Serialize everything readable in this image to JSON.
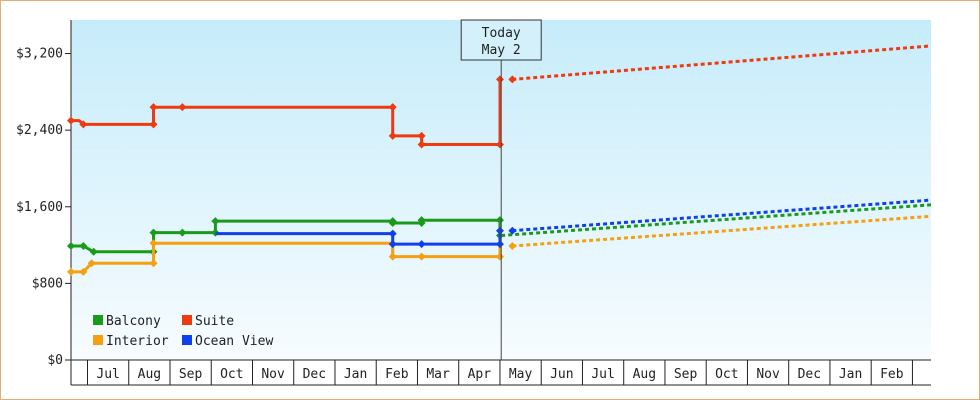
{
  "chart_data": {
    "type": "line",
    "title": "",
    "xlabel": "",
    "ylabel": "",
    "ylim": [
      0,
      3550
    ],
    "yticks": [
      0,
      800,
      1600,
      2400,
      3200
    ],
    "ytick_labels": [
      "$0",
      "$800",
      "$1,600",
      "$2,400",
      "$3,200"
    ],
    "month_labels": [
      "Jul",
      "Aug",
      "Sep",
      "Oct",
      "Nov",
      "Dec",
      "Jan",
      "Feb",
      "Mar",
      "Apr",
      "May",
      "Jun",
      "Jul",
      "Aug",
      "Sep",
      "Oct",
      "Nov",
      "Dec",
      "Jan",
      "Feb"
    ],
    "month_positions": [
      0.5,
      1.5,
      2.5,
      3.5,
      4.5,
      5.5,
      6.5,
      7.5,
      8.5,
      9.5,
      10.5,
      11.5,
      12.5,
      13.5,
      14.5,
      15.5,
      16.5,
      17.5,
      18.5,
      19.5
    ],
    "xlim": [
      -0.4,
      20.45
    ],
    "today": {
      "x": 10.03,
      "line1": "Today",
      "line2": "May 2"
    },
    "legend_position": "bottom-left",
    "series": [
      {
        "name": "Balcony",
        "color": "#1a9a1a",
        "history": [
          [
            -0.4,
            1190
          ],
          [
            -0.1,
            1190
          ],
          [
            0.15,
            1130
          ],
          [
            1.6,
            1130
          ],
          [
            1.6,
            1330
          ],
          [
            2.3,
            1330
          ],
          [
            2.3,
            1330
          ],
          [
            3.1,
            1330
          ],
          [
            3.1,
            1450
          ],
          [
            7.4,
            1450
          ],
          [
            7.4,
            1430
          ],
          [
            8.1,
            1430
          ],
          [
            8.1,
            1460
          ],
          [
            10.0,
            1460
          ],
          [
            10.0,
            1300
          ],
          [
            10.03,
            1300
          ]
        ],
        "markers": [
          [
            -0.4,
            1190
          ],
          [
            -0.1,
            1190
          ],
          [
            0.15,
            1130
          ],
          [
            1.6,
            1130
          ],
          [
            1.6,
            1330
          ],
          [
            2.3,
            1330
          ],
          [
            3.1,
            1330
          ],
          [
            3.1,
            1450
          ],
          [
            7.4,
            1450
          ],
          [
            7.4,
            1430
          ],
          [
            8.1,
            1430
          ],
          [
            8.1,
            1460
          ],
          [
            10.0,
            1460
          ],
          [
            10.0,
            1300
          ]
        ],
        "forecast": [
          [
            10.03,
            1300
          ],
          [
            20.45,
            1620
          ]
        ]
      },
      {
        "name": "Suite",
        "color": "#ee3a10",
        "history": [
          [
            -0.4,
            2500
          ],
          [
            -0.2,
            2500
          ],
          [
            -0.1,
            2460
          ],
          [
            1.6,
            2460
          ],
          [
            1.6,
            2640
          ],
          [
            2.3,
            2640
          ],
          [
            7.4,
            2640
          ],
          [
            7.4,
            2340
          ],
          [
            8.1,
            2340
          ],
          [
            8.1,
            2250
          ],
          [
            10.0,
            2250
          ],
          [
            10.0,
            2930
          ],
          [
            10.03,
            2930
          ]
        ],
        "markers": [
          [
            -0.4,
            2500
          ],
          [
            -0.1,
            2460
          ],
          [
            1.6,
            2460
          ],
          [
            1.6,
            2640
          ],
          [
            2.3,
            2640
          ],
          [
            7.4,
            2640
          ],
          [
            7.4,
            2340
          ],
          [
            8.1,
            2340
          ],
          [
            8.1,
            2250
          ],
          [
            10.0,
            2250
          ],
          [
            10.0,
            2930
          ],
          [
            10.3,
            2930
          ]
        ],
        "forecast": [
          [
            10.3,
            2930
          ],
          [
            20.45,
            3280
          ]
        ]
      },
      {
        "name": "Interior",
        "color": "#f4a010",
        "history": [
          [
            -0.4,
            920
          ],
          [
            -0.1,
            920
          ],
          [
            0.1,
            1010
          ],
          [
            1.6,
            1010
          ],
          [
            1.6,
            1220
          ],
          [
            7.4,
            1220
          ],
          [
            7.4,
            1080
          ],
          [
            8.1,
            1080
          ],
          [
            10.0,
            1080
          ],
          [
            10.0,
            1190
          ],
          [
            10.03,
            1190
          ]
        ],
        "markers": [
          [
            -0.4,
            920
          ],
          [
            -0.1,
            920
          ],
          [
            0.1,
            1010
          ],
          [
            1.6,
            1010
          ],
          [
            1.6,
            1220
          ],
          [
            7.4,
            1080
          ],
          [
            8.1,
            1080
          ],
          [
            10.0,
            1080
          ],
          [
            10.3,
            1190
          ]
        ],
        "forecast": [
          [
            10.3,
            1190
          ],
          [
            20.45,
            1500
          ]
        ]
      },
      {
        "name": "Ocean View",
        "color": "#1040ee",
        "history": [
          [
            3.1,
            1320
          ],
          [
            7.4,
            1320
          ],
          [
            7.4,
            1210
          ],
          [
            8.1,
            1210
          ],
          [
            10.0,
            1210
          ],
          [
            10.0,
            1350
          ],
          [
            10.03,
            1350
          ]
        ],
        "markers": [
          [
            7.4,
            1320
          ],
          [
            7.4,
            1210
          ],
          [
            8.1,
            1210
          ],
          [
            10.0,
            1210
          ],
          [
            10.0,
            1350
          ],
          [
            10.3,
            1350
          ]
        ],
        "forecast": [
          [
            10.3,
            1350
          ],
          [
            20.45,
            1670
          ]
        ]
      }
    ]
  }
}
